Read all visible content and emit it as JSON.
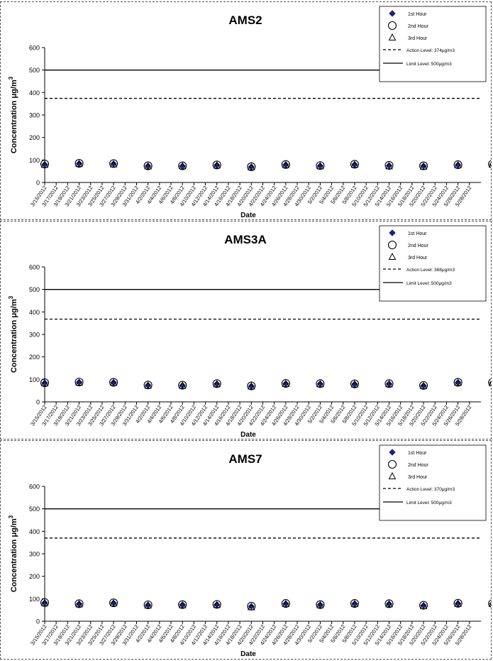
{
  "chart_data": [
    {
      "type": "scatter",
      "title": "AMS2",
      "ylabel": "Concentration  μg/m",
      "ylabel_sup": "3",
      "xlabel": "Date",
      "ylim": [
        0,
        600
      ],
      "yticks": [
        0,
        100,
        200,
        300,
        400,
        500,
        600
      ],
      "x_tick_labels": [
        "3/15/2012",
        "3/17/2012",
        "3/19/2012",
        "3/21/2012",
        "3/23/2012",
        "3/25/2012",
        "3/27/2012",
        "3/29/2012",
        "3/31/2012",
        "4/2/2012",
        "4/4/2012",
        "4/6/2012",
        "4/8/2012",
        "4/10/2012",
        "4/12/2012",
        "4/14/2012",
        "4/16/2012",
        "4/18/2012",
        "4/20/2012",
        "4/22/2012",
        "4/24/2012",
        "4/26/2012",
        "4/28/2012",
        "4/30/2012",
        "5/2/2012",
        "5/4/2012",
        "5/6/2012",
        "5/8/2012",
        "5/10/2012",
        "5/12/2012",
        "5/14/2012",
        "5/16/2012",
        "5/18/2012",
        "5/20/2012",
        "5/22/2012",
        "5/24/2012",
        "5/26/2012",
        "5/28/2012"
      ],
      "xlim": [
        "3/15/2012",
        "5/30/2012"
      ],
      "x": [
        "3/15/2012",
        "3/21/2012",
        "3/27/2012",
        "4/2/2012",
        "4/8/2012",
        "4/14/2012",
        "4/20/2012",
        "4/26/2012",
        "5/2/2012",
        "5/8/2012",
        "5/14/2012",
        "5/20/2012",
        "5/26/2012",
        "6/1/2012"
      ],
      "series": [
        {
          "name": "1st Hour",
          "marker": "diamond",
          "color": "#1a237e",
          "values": [
            80,
            84,
            83,
            73,
            73,
            77,
            69,
            79,
            74,
            80,
            75,
            73,
            78,
            81
          ]
        },
        {
          "name": "2nd Hour",
          "marker": "circle",
          "color": "#000000",
          "values": [
            82,
            85,
            84,
            74,
            74,
            78,
            70,
            80,
            75,
            81,
            76,
            74,
            79,
            82
          ]
        },
        {
          "name": "3rd Hour",
          "marker": "triangle",
          "color": "#000000",
          "values": [
            78,
            82,
            80,
            71,
            72,
            75,
            67,
            77,
            72,
            78,
            72,
            70,
            76,
            79
          ]
        }
      ],
      "lines": [
        {
          "name": "Action Level: 374μg/m3",
          "value": 374,
          "style": "dashed"
        },
        {
          "name": "Limit Level: 500μg/m3",
          "value": 500,
          "style": "solid"
        }
      ],
      "legend": "top-right"
    },
    {
      "type": "scatter",
      "title": "AMS3A",
      "ylabel": "Concentration  μg/m",
      "ylabel_sup": "3",
      "xlabel": "Date",
      "ylim": [
        0,
        600
      ],
      "yticks": [
        0,
        100,
        200,
        300,
        400,
        500,
        600
      ],
      "x_tick_labels": [
        "3/15/2012",
        "3/17/2012",
        "3/19/2012",
        "3/21/2012",
        "3/23/2012",
        "3/25/2012",
        "3/27/2012",
        "3/29/2012",
        "3/31/2012",
        "4/2/2012",
        "4/4/2012",
        "4/6/2012",
        "4/8/2012",
        "4/10/2012",
        "4/12/2012",
        "4/14/2012",
        "4/16/2012",
        "4/18/2012",
        "4/20/2012",
        "4/22/2012",
        "4/24/2012",
        "4/26/2012",
        "4/28/2012",
        "4/30/2012",
        "5/2/2012",
        "5/4/2012",
        "5/6/2012",
        "5/8/2012",
        "5/10/2012",
        "5/12/2012",
        "5/14/2012",
        "5/16/2012",
        "5/18/2012",
        "5/20/2012",
        "5/22/2012",
        "5/24/2012",
        "5/26/2012",
        "5/28/2012"
      ],
      "xlim": [
        "3/15/2012",
        "5/30/2012"
      ],
      "x": [
        "3/15/2012",
        "3/21/2012",
        "3/27/2012",
        "4/2/2012",
        "4/8/2012",
        "4/14/2012",
        "4/20/2012",
        "4/26/2012",
        "5/2/2012",
        "5/8/2012",
        "5/14/2012",
        "5/20/2012",
        "5/26/2012",
        "6/1/2012"
      ],
      "series": [
        {
          "name": "1st Hour",
          "marker": "diamond",
          "color": "#1a237e",
          "values": [
            84,
            87,
            86,
            74,
            73,
            80,
            70,
            81,
            80,
            79,
            80,
            72,
            86,
            85
          ]
        },
        {
          "name": "2nd Hour",
          "marker": "circle",
          "color": "#000000",
          "values": [
            85,
            88,
            87,
            75,
            74,
            81,
            71,
            82,
            81,
            80,
            81,
            73,
            87,
            86
          ]
        },
        {
          "name": "3rd Hour",
          "marker": "triangle",
          "color": "#000000",
          "values": [
            82,
            85,
            84,
            72,
            71,
            78,
            68,
            79,
            78,
            77,
            78,
            70,
            84,
            83
          ]
        }
      ],
      "lines": [
        {
          "name": "Action Level: 368μg/m3",
          "value": 368,
          "style": "dashed"
        },
        {
          "name": "Limit Level: 500μg/m3",
          "value": 500,
          "style": "solid"
        }
      ],
      "legend": "top-right"
    },
    {
      "type": "scatter",
      "title": "AMS7",
      "ylabel": "Concentration  μg/m",
      "ylabel_sup": "3",
      "xlabel": "Date",
      "ylim": [
        0,
        600
      ],
      "yticks": [
        0,
        100,
        200,
        300,
        400,
        500,
        600
      ],
      "x_tick_labels": [
        "3/15/2012",
        "3/17/2012",
        "3/19/2012",
        "3/21/2012",
        "3/23/2012",
        "3/25/2012",
        "3/27/2012",
        "3/29/2012",
        "3/31/2012",
        "4/2/2012",
        "4/4/2012",
        "4/6/2012",
        "4/8/2012",
        "4/10/2012",
        "4/12/2012",
        "4/14/2012",
        "4/16/2012",
        "4/18/2012",
        "4/20/2012",
        "4/22/2012",
        "4/24/2012",
        "4/26/2012",
        "4/28/2012",
        "4/30/2012",
        "5/2/2012",
        "5/4/2012",
        "5/6/2012",
        "5/8/2012",
        "5/10/2012",
        "5/12/2012",
        "5/14/2012",
        "5/16/2012",
        "5/18/2012",
        "5/20/2012",
        "5/22/2012",
        "5/24/2012",
        "5/26/2012",
        "5/28/2012"
      ],
      "xlim": [
        "3/15/2012",
        "5/30/2012"
      ],
      "x": [
        "3/15/2012",
        "3/21/2012",
        "3/27/2012",
        "4/2/2012",
        "4/8/2012",
        "4/14/2012",
        "4/20/2012",
        "4/26/2012",
        "5/2/2012",
        "5/8/2012",
        "5/14/2012",
        "5/20/2012",
        "5/26/2012",
        "6/1/2012"
      ],
      "series": [
        {
          "name": "1st Hour",
          "marker": "diamond",
          "color": "#1a237e",
          "values": [
            82,
            77,
            81,
            72,
            73,
            74,
            66,
            78,
            73,
            78,
            77,
            70,
            79,
            78
          ]
        },
        {
          "name": "2nd Hour",
          "marker": "circle",
          "color": "#000000",
          "values": [
            83,
            78,
            82,
            73,
            74,
            75,
            67,
            79,
            74,
            79,
            78,
            71,
            80,
            79
          ]
        },
        {
          "name": "3rd Hour",
          "marker": "triangle",
          "color": "#000000",
          "values": [
            80,
            75,
            79,
            70,
            71,
            72,
            62,
            76,
            71,
            76,
            75,
            67,
            77,
            76
          ]
        }
      ],
      "lines": [
        {
          "name": "Action Level: 370μg/m3",
          "value": 370,
          "style": "dashed"
        },
        {
          "name": "Limit Level: 500μg/m3",
          "value": 500,
          "style": "solid"
        }
      ],
      "legend": "top-right"
    }
  ]
}
